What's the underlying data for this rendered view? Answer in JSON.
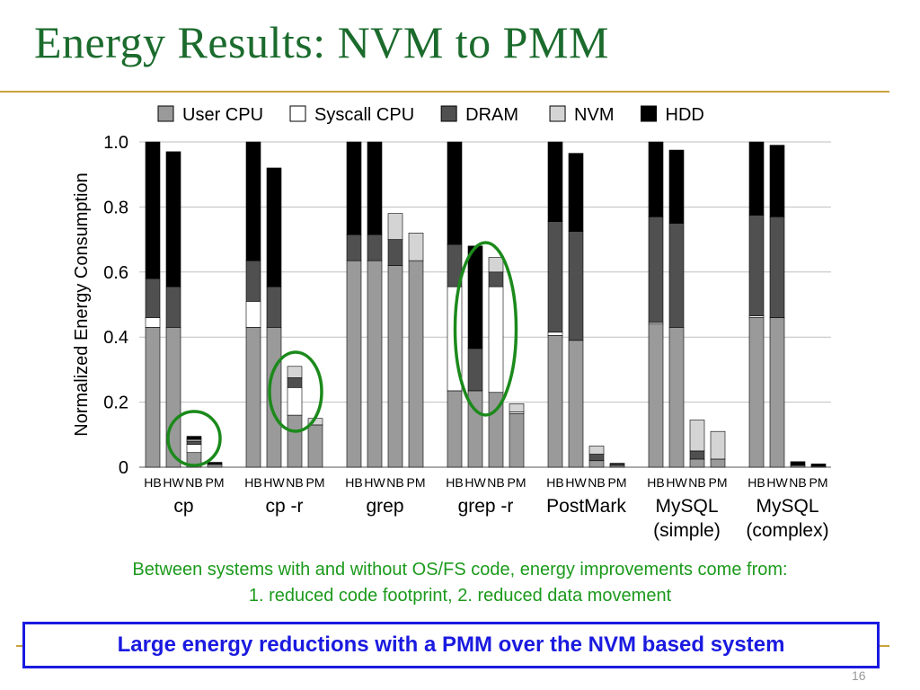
{
  "slide": {
    "title": "Energy Results: NVM to PMM",
    "caption_line1": "Between systems with and without OS/FS code, energy improvements come from:",
    "caption_line2": "1. reduced code footprint, 2. reduced data movement",
    "takeaway": "Large energy reductions with a PMM over the NVM based system",
    "page_number": "16"
  },
  "chart_data": {
    "type": "bar",
    "stacked": true,
    "ylabel": "Normalized Energy Consumption",
    "ylim": [
      0,
      1.0
    ],
    "yticks": [
      0,
      0.2,
      0.4,
      0.6,
      0.8,
      1.0
    ],
    "ytick_labels": [
      "0",
      "0.2",
      "0.4",
      "0.6",
      "0.8",
      "1.0"
    ],
    "grid": true,
    "legend": "top",
    "system_labels": [
      "HB",
      "HW",
      "NB",
      "PM"
    ],
    "components": [
      {
        "name": "User CPU",
        "color": "#9a9a9a"
      },
      {
        "name": "Syscall CPU",
        "color": "#ffffff"
      },
      {
        "name": "DRAM",
        "color": "#505050"
      },
      {
        "name": "NVM",
        "color": "#d4d4d4"
      },
      {
        "name": "HDD",
        "color": "#000000"
      }
    ],
    "groups": [
      {
        "label": "cp",
        "sublabel": "",
        "bars": [
          [
            0.43,
            0.03,
            0.12,
            0,
            0.42
          ],
          [
            0.43,
            0,
            0.125,
            0,
            0.415
          ],
          [
            0.045,
            0.025,
            0.01,
            0.005,
            0.01
          ],
          [
            0.008,
            0,
            0.003,
            0,
            0.004
          ]
        ]
      },
      {
        "label": "cp -r",
        "sublabel": "",
        "bars": [
          [
            0.43,
            0.08,
            0.125,
            0,
            0.365
          ],
          [
            0.43,
            0,
            0.125,
            0,
            0.365
          ],
          [
            0.16,
            0.085,
            0.03,
            0.035,
            0
          ],
          [
            0.13,
            0,
            0,
            0.02,
            0
          ]
        ]
      },
      {
        "label": "grep",
        "sublabel": "",
        "bars": [
          [
            0.635,
            0,
            0.08,
            0,
            0.285
          ],
          [
            0.635,
            0,
            0.08,
            0,
            0.285
          ],
          [
            0.62,
            0,
            0.08,
            0.08,
            0
          ],
          [
            0.635,
            0,
            0,
            0.085,
            0
          ]
        ]
      },
      {
        "label": "grep -r",
        "sublabel": "",
        "bars": [
          [
            0.235,
            0.32,
            0.13,
            0,
            0.315
          ],
          [
            0.235,
            0,
            0.13,
            0,
            0.315
          ],
          [
            0.23,
            0.325,
            0.045,
            0.045,
            0
          ],
          [
            0.165,
            0.005,
            0,
            0.025,
            0
          ]
        ]
      },
      {
        "label": "PostMark",
        "sublabel": "",
        "bars": [
          [
            0.405,
            0.01,
            0.34,
            0,
            0.245
          ],
          [
            0.39,
            0,
            0.335,
            0,
            0.24
          ],
          [
            0.02,
            0,
            0.02,
            0.025,
            0
          ],
          [
            0.005,
            0,
            0.005,
            0,
            0.002
          ]
        ]
      },
      {
        "label": "MySQL",
        "sublabel": "(simple)",
        "bars": [
          [
            0.44,
            0.005,
            0.325,
            0,
            0.23
          ],
          [
            0.43,
            0,
            0.32,
            0,
            0.225
          ],
          [
            0.025,
            0,
            0.025,
            0.095,
            0
          ],
          [
            0.025,
            0,
            0,
            0.085,
            0
          ]
        ]
      },
      {
        "label": "MySQL",
        "sublabel": "(complex)",
        "bars": [
          [
            0.46,
            0.005,
            0.31,
            0,
            0.225
          ],
          [
            0.46,
            0,
            0.31,
            0,
            0.22
          ],
          [
            0.005,
            0,
            0,
            0,
            0.012
          ],
          [
            0.003,
            0,
            0,
            0,
            0.007
          ]
        ]
      }
    ],
    "highlight_circles": [
      "cp: NB",
      "cp -r: NB",
      "grep -r: HW + NB"
    ]
  }
}
